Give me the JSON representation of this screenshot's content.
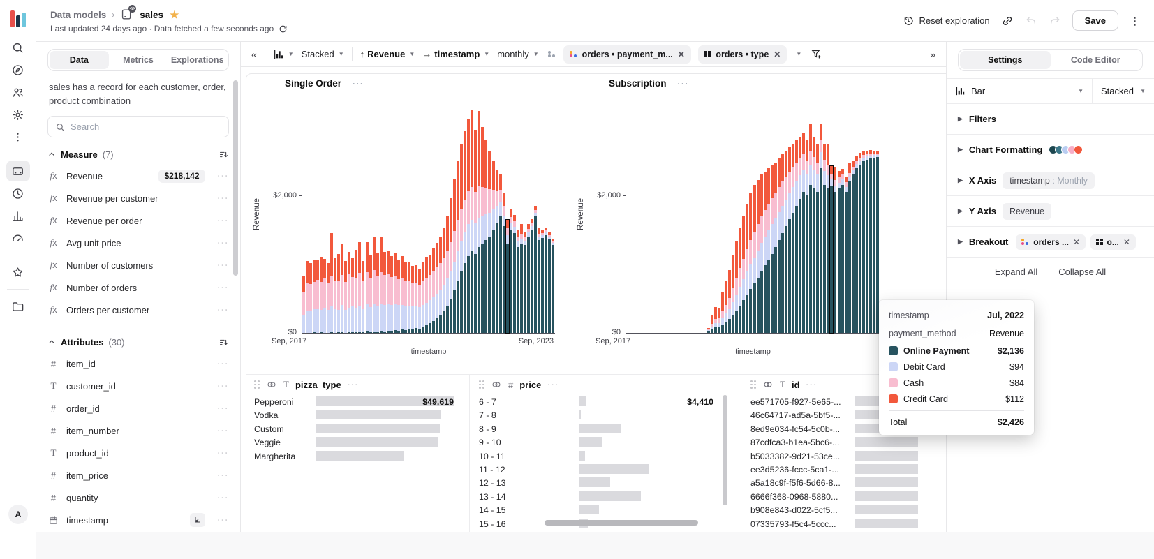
{
  "header": {
    "breadcrumb_root": "Data models",
    "model_name": "sales",
    "updated_line": "Last updated 24 days ago · Data fetched a few seconds ago",
    "reset_label": "Reset exploration",
    "save_label": "Save"
  },
  "rail": {
    "avatar": "A",
    "icons": [
      "search",
      "compass",
      "users",
      "gear",
      "kebab",
      "divider",
      "model-card",
      "query-clock",
      "bar-chart",
      "gauge",
      "divider",
      "star",
      "divider",
      "folder"
    ],
    "active_icon": "model-card"
  },
  "sidebar": {
    "tabs": [
      {
        "label": "Data",
        "active": true
      },
      {
        "label": "Metrics",
        "active": false
      },
      {
        "label": "Explorations",
        "active": false
      }
    ],
    "description": "sales has a record for each customer, order, product combination",
    "search_placeholder": "Search",
    "measures": {
      "title": "Measure",
      "count": "(7)",
      "items": [
        {
          "name": "Revenue",
          "badge": "$218,142"
        },
        {
          "name": "Revenue per customer"
        },
        {
          "name": "Revenue per order"
        },
        {
          "name": "Avg unit price"
        },
        {
          "name": "Number of customers"
        },
        {
          "name": "Number of orders"
        },
        {
          "name": "Orders per customer"
        }
      ]
    },
    "attributes": {
      "title": "Attributes",
      "count": "(30)",
      "items": [
        {
          "name": "item_id",
          "type": "number"
        },
        {
          "name": "customer_id",
          "type": "text"
        },
        {
          "name": "order_id",
          "type": "number"
        },
        {
          "name": "item_number",
          "type": "number"
        },
        {
          "name": "product_id",
          "type": "text"
        },
        {
          "name": "item_price",
          "type": "number"
        },
        {
          "name": "quantity",
          "type": "number"
        },
        {
          "name": "timestamp",
          "type": "date",
          "axis_badge": true
        }
      ]
    }
  },
  "toolbar": {
    "viz_label": "Stacked",
    "y_field": "Revenue",
    "x_field": "timestamp",
    "granularity": "monthly",
    "breakout_pills": [
      {
        "label": "orders • payment_m...",
        "icon": "color-dots"
      },
      {
        "label": "orders • type",
        "icon": "grid"
      }
    ]
  },
  "chart_data": [
    {
      "type": "bar",
      "stacked": true,
      "title": "Single Order",
      "xlabel": "timestamp",
      "ylabel": "Revenue",
      "y_ticks": [
        "$0",
        "$2,000"
      ],
      "y_tick_values": [
        0,
        2000
      ],
      "x_start_label": "Sep, 2017",
      "x_end_label": "Sep, 2023",
      "months": 72,
      "highlight_index": 58,
      "series": [
        {
          "name": "Online Payment",
          "color": "#27535f",
          "values": [
            0,
            0,
            0,
            5,
            0,
            5,
            0,
            0,
            10,
            0,
            5,
            10,
            0,
            5,
            10,
            5,
            10,
            5,
            20,
            10,
            15,
            10,
            20,
            15,
            30,
            25,
            40,
            35,
            50,
            45,
            60,
            55,
            70,
            65,
            90,
            110,
            140,
            170,
            210,
            260,
            320,
            400,
            500,
            620,
            760,
            900,
            1020,
            1120,
            1200,
            1150,
            1250,
            1300,
            1350,
            1400,
            1500,
            1600,
            1700,
            1550,
            1300,
            1500,
            1450,
            1250,
            1300,
            1280,
            1400,
            1500,
            1700,
            1350,
            1380,
            1420,
            1360,
            1280
          ]
        },
        {
          "name": "Debit Card",
          "color": "#ccd6f6",
          "values": [
            260,
            320,
            330,
            340,
            350,
            330,
            360,
            340,
            380,
            350,
            330,
            400,
            340,
            360,
            380,
            350,
            390,
            340,
            400,
            370,
            400,
            380,
            410,
            390,
            400,
            380,
            390,
            370,
            360,
            350,
            340,
            330,
            320,
            310,
            320,
            330,
            340,
            350,
            360,
            370,
            380,
            390,
            400,
            420,
            430,
            440,
            450,
            460,
            450,
            440,
            430,
            400,
            380,
            350,
            300,
            250,
            200,
            160,
            120,
            100,
            90,
            80,
            70,
            60,
            60,
            55,
            50,
            45,
            40,
            40,
            35,
            30
          ]
        },
        {
          "name": "Cash",
          "color": "#f8bdd0",
          "values": [
            330,
            400,
            380,
            390,
            420,
            400,
            430,
            380,
            440,
            410,
            420,
            430,
            400,
            480,
            420,
            430,
            470,
            400,
            460,
            420,
            500,
            430,
            450,
            440,
            420,
            410,
            400,
            380,
            390,
            370,
            360,
            350,
            340,
            330,
            340,
            350,
            360,
            370,
            380,
            390,
            400,
            410,
            420,
            440,
            450,
            460,
            470,
            480,
            470,
            460,
            450,
            420,
            380,
            340,
            280,
            220,
            180,
            140,
            100,
            90,
            80,
            70,
            60,
            55,
            50,
            45,
            40,
            40,
            35,
            30,
            30,
            25
          ]
        },
        {
          "name": "Credit Card",
          "color": "#f2583c",
          "values": [
            240,
            330,
            310,
            330,
            300,
            370,
            290,
            300,
            620,
            340,
            390,
            460,
            310,
            330,
            280,
            420,
            450,
            300,
            440,
            330,
            480,
            350,
            520,
            330,
            350,
            300,
            340,
            280,
            320,
            260,
            280,
            240,
            260,
            230,
            280,
            320,
            300,
            340,
            360,
            380,
            420,
            500,
            640,
            760,
            860,
            940,
            1000,
            1060,
            1120,
            900,
            1100,
            880,
            700,
            560,
            420,
            300,
            240,
            180,
            130,
            110,
            100,
            90,
            150,
            80,
            70,
            60,
            55,
            90,
            50,
            45,
            40,
            35
          ]
        }
      ]
    },
    {
      "type": "bar",
      "stacked": true,
      "title": "Subscription",
      "xlabel": "timestamp",
      "ylabel": "Revenue",
      "y_ticks": [
        "$0",
        "$2,000"
      ],
      "y_tick_values": [
        0,
        2000
      ],
      "x_start_label": "Sep, 2017",
      "x_end_label": "",
      "months": 72,
      "highlight_index": 58,
      "series": [
        {
          "name": "Online Payment",
          "color": "#27535f",
          "values": [
            0,
            0,
            0,
            0,
            0,
            0,
            0,
            0,
            0,
            0,
            0,
            0,
            0,
            0,
            0,
            0,
            0,
            0,
            0,
            0,
            0,
            0,
            0,
            30,
            60,
            90,
            80,
            120,
            160,
            200,
            260,
            330,
            400,
            480,
            560,
            640,
            720,
            800,
            900,
            980,
            1060,
            1150,
            1250,
            1350,
            1450,
            1550,
            1650,
            1750,
            1850,
            1950,
            2050,
            2000,
            2150,
            2100,
            2050,
            2400,
            2150,
            2100,
            2136,
            2050,
            2100,
            2150,
            2050,
            2200,
            2300,
            2400,
            2450,
            2500,
            2520,
            2540,
            2550,
            2560
          ]
        },
        {
          "name": "Debit Card",
          "color": "#ccd6f6",
          "values": [
            0,
            0,
            0,
            0,
            0,
            0,
            0,
            0,
            0,
            0,
            0,
            0,
            0,
            0,
            0,
            0,
            0,
            0,
            0,
            0,
            0,
            0,
            0,
            10,
            30,
            50,
            60,
            90,
            120,
            150,
            190,
            230,
            270,
            300,
            330,
            360,
            380,
            400,
            410,
            420,
            430,
            430,
            420,
            410,
            400,
            390,
            380,
            370,
            360,
            340,
            320,
            300,
            290,
            270,
            250,
            230,
            210,
            190,
            94,
            90,
            85,
            80,
            75,
            70,
            65,
            60,
            55,
            50,
            45,
            40,
            35,
            30
          ]
        },
        {
          "name": "Cash",
          "color": "#f8bdd0",
          "values": [
            0,
            0,
            0,
            0,
            0,
            0,
            0,
            0,
            0,
            0,
            0,
            0,
            0,
            0,
            0,
            0,
            0,
            0,
            0,
            0,
            0,
            0,
            0,
            10,
            40,
            60,
            70,
            100,
            130,
            160,
            200,
            240,
            270,
            300,
            330,
            350,
            370,
            380,
            390,
            390,
            390,
            380,
            370,
            360,
            350,
            330,
            310,
            290,
            270,
            250,
            230,
            210,
            200,
            190,
            180,
            170,
            160,
            150,
            84,
            80,
            75,
            70,
            65,
            60,
            55,
            50,
            45,
            40,
            30,
            30,
            25,
            20
          ]
        },
        {
          "name": "Credit Card",
          "color": "#f2583c",
          "values": [
            0,
            0,
            0,
            0,
            0,
            0,
            0,
            0,
            0,
            0,
            0,
            0,
            0,
            0,
            0,
            0,
            0,
            0,
            0,
            0,
            0,
            0,
            0,
            20,
            120,
            180,
            160,
            280,
            340,
            400,
            480,
            540,
            580,
            620,
            650,
            680,
            680,
            640,
            600,
            560,
            520,
            480,
            440,
            420,
            400,
            380,
            360,
            340,
            330,
            310,
            300,
            290,
            410,
            280,
            260,
            240,
            230,
            300,
            112,
            200,
            100,
            90,
            85,
            150,
            80,
            70,
            65,
            60,
            55,
            50,
            45,
            40
          ]
        }
      ]
    }
  ],
  "tooltip": {
    "rows": [
      {
        "label": "timestamp",
        "value": "Jul, 2022"
      },
      {
        "label": "payment_method",
        "value": "Revenue"
      }
    ],
    "legend": [
      {
        "name": "Online Payment",
        "value": "$2,136",
        "color": "#27535f",
        "bold": true
      },
      {
        "name": "Debit Card",
        "value": "$94",
        "color": "#ccd6f6",
        "bold": false
      },
      {
        "name": "Cash",
        "value": "$84",
        "color": "#f8bdd0",
        "bold": false
      },
      {
        "name": "Credit Card",
        "value": "$112",
        "color": "#f2583c",
        "bold": false
      }
    ],
    "total_label": "Total",
    "total_value": "$2,426"
  },
  "summary_tables": [
    {
      "title": "pizza_type",
      "type_icon": "T",
      "rows": [
        {
          "label": "Pepperoni",
          "bar": 1,
          "value": "$49,619"
        },
        {
          "label": "Vodka",
          "bar": 0.91
        },
        {
          "label": "Custom",
          "bar": 0.9
        },
        {
          "label": "Veggie",
          "bar": 0.89
        },
        {
          "label": "Margherita",
          "bar": 0.64
        }
      ]
    },
    {
      "title": "price",
      "type_icon": "#",
      "rows": [
        {
          "label": "6 - 7",
          "bar": 0.1,
          "value": "$4,410"
        },
        {
          "label": "7 - 8",
          "bar": 0.02
        },
        {
          "label": "8 - 9",
          "bar": 0.6
        },
        {
          "label": "9 - 10",
          "bar": 0.32
        },
        {
          "label": "10 - 11",
          "bar": 0.08
        },
        {
          "label": "11 - 12",
          "bar": 1
        },
        {
          "label": "12 - 13",
          "bar": 0.44
        },
        {
          "label": "13 - 14",
          "bar": 0.88
        },
        {
          "label": "14 - 15",
          "bar": 0.28
        },
        {
          "label": "15 - 16",
          "bar": 0.12
        }
      ]
    },
    {
      "title": "id",
      "type_icon": "T",
      "rows": [
        {
          "label": "ee571705-f927-5e65-...",
          "bar": 1
        },
        {
          "label": "46c64717-ad5a-5bf5-...",
          "bar": 1
        },
        {
          "label": "8ed9e034-fc54-5c0b-...",
          "bar": 1
        },
        {
          "label": "87cdfca3-b1ea-5bc6-...",
          "bar": 1
        },
        {
          "label": "b5033382-9d21-53ce...",
          "bar": 1
        },
        {
          "label": "ee3d5236-fccc-5ca1-...",
          "bar": 1
        },
        {
          "label": "a5a18c9f-f5f6-5d66-8...",
          "bar": 1
        },
        {
          "label": "6666f368-0968-5880...",
          "bar": 1
        },
        {
          "label": "b908e843-d022-5cf5...",
          "bar": 1
        },
        {
          "label": "07335793-f5c4-5ccc...",
          "bar": 1
        }
      ]
    }
  ],
  "settings": {
    "tabs": [
      {
        "label": "Settings",
        "active": true
      },
      {
        "label": "Code Editor",
        "active": false
      }
    ],
    "viz_type": "Bar",
    "stack_mode": "Stacked",
    "sections": [
      {
        "label": "Filters"
      },
      {
        "label": "Chart Formatting",
        "palette": [
          "#1d4750",
          "#3b7788",
          "#b9cdf1",
          "#f6aec8",
          "#f2583c"
        ]
      },
      {
        "label": "X Axis",
        "pill_main": "timestamp",
        "pill_sub": " : Monthly"
      },
      {
        "label": "Y Axis",
        "pill": "Revenue"
      },
      {
        "label": "Breakout",
        "pills": [
          {
            "label": "orders ...",
            "icon": "color-dots"
          },
          {
            "label": "o...",
            "icon": "grid"
          }
        ]
      }
    ],
    "expand_all": "Expand All",
    "collapse_all": "Collapse All"
  },
  "colors": {
    "logo": [
      "#e8504b",
      "#1e3448",
      "#6ec6dd"
    ],
    "breakout_dot_colors": [
      "#f5a623",
      "#e94f8a",
      "#3b6ce0"
    ],
    "star": "#f2b24c",
    "table_bar": "#dadade"
  }
}
